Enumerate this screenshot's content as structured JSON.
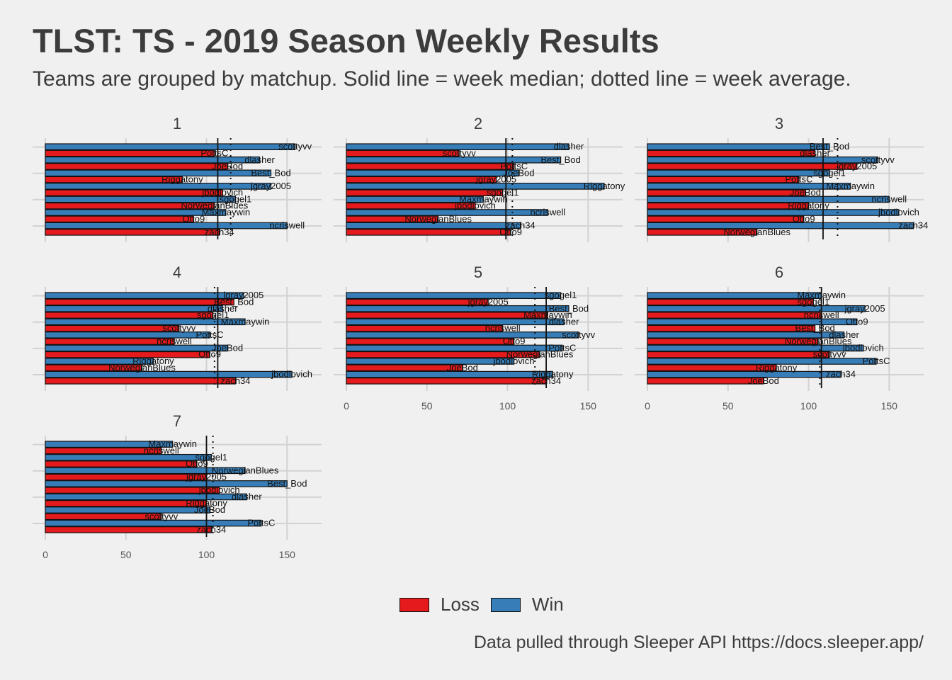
{
  "title": "TLST: TS - 2019 Season Weekly Results",
  "subtitle": "Teams are grouped by matchup. Solid line = week median; dotted line = week average.",
  "caption": "Data pulled through Sleeper API https://docs.sleeper.app/",
  "legend": [
    {
      "label": "Loss",
      "color": "#e41a1c"
    },
    {
      "label": "Win",
      "color": "#377eb8"
    }
  ],
  "chart_data": {
    "type": "bar",
    "orientation": "horizontal",
    "facet_by": "week",
    "x_ticks": [
      0,
      50,
      100,
      150
    ],
    "xlim": [
      0,
      170
    ],
    "colors": {
      "Loss": "#e41a1c",
      "Win": "#377eb8"
    },
    "facets": [
      {
        "label": "1",
        "median": 107,
        "average": 115,
        "bars": [
          {
            "team": "scottyvv",
            "value": 155,
            "result": "Win"
          },
          {
            "team": "PottsC",
            "value": 105,
            "result": "Loss"
          },
          {
            "team": "dlasher",
            "value": 133,
            "result": "Win"
          },
          {
            "team": "JoeBod",
            "value": 113,
            "result": "Loss"
          },
          {
            "team": "Best_Bod",
            "value": 140,
            "result": "Win"
          },
          {
            "team": "Riggatony",
            "value": 85,
            "result": "Loss"
          },
          {
            "team": "jgray2005",
            "value": 140,
            "result": "Win"
          },
          {
            "team": "jbodlovich",
            "value": 110,
            "result": "Loss"
          },
          {
            "team": "sgogel1",
            "value": 118,
            "result": "Win"
          },
          {
            "team": "NorwegianBlues",
            "value": 105,
            "result": "Loss"
          },
          {
            "team": "Maxmaywin",
            "value": 112,
            "result": "Win"
          },
          {
            "team": "Otto9",
            "value": 92,
            "result": "Loss"
          },
          {
            "team": "ncriswell",
            "value": 150,
            "result": "Win"
          },
          {
            "team": "zach34",
            "value": 108,
            "result": "Loss"
          }
        ]
      },
      {
        "label": "2",
        "median": 99,
        "average": 103,
        "bars": [
          {
            "team": "dlasher",
            "value": 138,
            "result": "Win"
          },
          {
            "team": "scottyvv",
            "value": 70,
            "result": "Loss"
          },
          {
            "team": "Best_Bod",
            "value": 133,
            "result": "Win"
          },
          {
            "team": "PottsC",
            "value": 104,
            "result": "Loss"
          },
          {
            "team": "JoeBod",
            "value": 107,
            "result": "Win"
          },
          {
            "team": "jgray2005",
            "value": 93,
            "result": "Loss"
          },
          {
            "team": "Riggatony",
            "value": 160,
            "result": "Win"
          },
          {
            "team": "sgogel1",
            "value": 97,
            "result": "Loss"
          },
          {
            "team": "Maxmaywin",
            "value": 85,
            "result": "Win"
          },
          {
            "team": "jbodlovich",
            "value": 80,
            "result": "Loss"
          },
          {
            "team": "ncriswell",
            "value": 125,
            "result": "Win"
          },
          {
            "team": "NorwegianBlues",
            "value": 57,
            "result": "Loss"
          },
          {
            "team": "zach34",
            "value": 108,
            "result": "Win"
          },
          {
            "team": "Otto9",
            "value": 102,
            "result": "Loss"
          }
        ]
      },
      {
        "label": "3",
        "median": 109,
        "average": 118,
        "bars": [
          {
            "team": "Best_Bod",
            "value": 113,
            "result": "Win"
          },
          {
            "team": "dlasher",
            "value": 104,
            "result": "Loss"
          },
          {
            "team": "scottyvv",
            "value": 143,
            "result": "Win"
          },
          {
            "team": "jgray2005",
            "value": 130,
            "result": "Loss"
          },
          {
            "team": "sgogel1",
            "value": 113,
            "result": "Win"
          },
          {
            "team": "PottsC",
            "value": 94,
            "result": "Loss"
          },
          {
            "team": "Maxmaywin",
            "value": 126,
            "result": "Win"
          },
          {
            "team": "JoeBod",
            "value": 98,
            "result": "Loss"
          },
          {
            "team": "ncriswell",
            "value": 150,
            "result": "Win"
          },
          {
            "team": "Riggatony",
            "value": 100,
            "result": "Loss"
          },
          {
            "team": "jbodlovich",
            "value": 156,
            "result": "Win"
          },
          {
            "team": "Otto9",
            "value": 97,
            "result": "Loss"
          },
          {
            "team": "zach34",
            "value": 165,
            "result": "Win"
          },
          {
            "team": "NorwegianBlues",
            "value": 68,
            "result": "Loss"
          }
        ]
      },
      {
        "label": "4",
        "median": 107,
        "average": 105,
        "bars": [
          {
            "team": "jgray2005",
            "value": 123,
            "result": "Win"
          },
          {
            "team": "Best_Bod",
            "value": 117,
            "result": "Loss"
          },
          {
            "team": "dlasher",
            "value": 110,
            "result": "Win"
          },
          {
            "team": "sgogel1",
            "value": 104,
            "result": "Loss"
          },
          {
            "team": "Maxmaywin",
            "value": 124,
            "result": "Win"
          },
          {
            "team": "scottyvv",
            "value": 83,
            "result": "Loss"
          },
          {
            "team": "PottsC",
            "value": 102,
            "result": "Win"
          },
          {
            "team": "ncriswell",
            "value": 80,
            "result": "Loss"
          },
          {
            "team": "JoeBod",
            "value": 113,
            "result": "Win"
          },
          {
            "team": "Otto9",
            "value": 102,
            "result": "Loss"
          },
          {
            "team": "Riggatony",
            "value": 67,
            "result": "Win"
          },
          {
            "team": "NorwegianBlues",
            "value": 60,
            "result": "Loss"
          },
          {
            "team": "jbodlovich",
            "value": 153,
            "result": "Win"
          },
          {
            "team": "zach34",
            "value": 118,
            "result": "Loss"
          }
        ]
      },
      {
        "label": "5",
        "median": 124,
        "average": 117,
        "bars": [
          {
            "team": "sgogel1",
            "value": 133,
            "result": "Win"
          },
          {
            "team": "jgray2005",
            "value": 88,
            "result": "Loss"
          },
          {
            "team": "Best_Bod",
            "value": 138,
            "result": "Win"
          },
          {
            "team": "Maxmaywin",
            "value": 125,
            "result": "Loss"
          },
          {
            "team": "dlasher",
            "value": 135,
            "result": "Win"
          },
          {
            "team": "ncriswell",
            "value": 97,
            "result": "Loss"
          },
          {
            "team": "scottyvv",
            "value": 144,
            "result": "Win"
          },
          {
            "team": "Otto9",
            "value": 104,
            "result": "Loss"
          },
          {
            "team": "PottsC",
            "value": 134,
            "result": "Win"
          },
          {
            "team": "NorwegianBlues",
            "value": 120,
            "result": "Loss"
          },
          {
            "team": "jbodlovich",
            "value": 104,
            "result": "Win"
          },
          {
            "team": "JoeBod",
            "value": 72,
            "result": "Loss"
          },
          {
            "team": "Riggatony",
            "value": 128,
            "result": "Win"
          },
          {
            "team": "zach34",
            "value": 124,
            "result": "Loss"
          }
        ]
      },
      {
        "label": "6",
        "median": 108,
        "average": 107,
        "bars": [
          {
            "team": "Maxmaywin",
            "value": 108,
            "result": "Win"
          },
          {
            "team": "sgogel1",
            "value": 103,
            "result": "Loss"
          },
          {
            "team": "jgray2005",
            "value": 135,
            "result": "Win"
          },
          {
            "team": "ncriswell",
            "value": 108,
            "result": "Loss"
          },
          {
            "team": "Otto9",
            "value": 130,
            "result": "Win"
          },
          {
            "team": "Best_Bod",
            "value": 104,
            "result": "Loss"
          },
          {
            "team": "dlasher",
            "value": 122,
            "result": "Win"
          },
          {
            "team": "NorwegianBlues",
            "value": 106,
            "result": "Loss"
          },
          {
            "team": "jbodlovich",
            "value": 134,
            "result": "Win"
          },
          {
            "team": "scottyvv",
            "value": 113,
            "result": "Loss"
          },
          {
            "team": "PottsC",
            "value": 142,
            "result": "Win"
          },
          {
            "team": "Riggatony",
            "value": 80,
            "result": "Loss"
          },
          {
            "team": "zach34",
            "value": 120,
            "result": "Win"
          },
          {
            "team": "JoeBod",
            "value": 72,
            "result": "Loss"
          }
        ]
      },
      {
        "label": "7",
        "median": 100,
        "average": 104,
        "bars": [
          {
            "team": "Maxmaywin",
            "value": 79,
            "result": "Win"
          },
          {
            "team": "ncriswell",
            "value": 72,
            "result": "Loss"
          },
          {
            "team": "sgogel1",
            "value": 103,
            "result": "Win"
          },
          {
            "team": "Otto9",
            "value": 94,
            "result": "Loss"
          },
          {
            "team": "NorwegianBlues",
            "value": 124,
            "result": "Win"
          },
          {
            "team": "jgray2005",
            "value": 100,
            "result": "Loss"
          },
          {
            "team": "Best_Bod",
            "value": 150,
            "result": "Win"
          },
          {
            "team": "jbodlovich",
            "value": 108,
            "result": "Loss"
          },
          {
            "team": "dlasher",
            "value": 125,
            "result": "Win"
          },
          {
            "team": "Riggatony",
            "value": 100,
            "result": "Loss"
          },
          {
            "team": "JoeBod",
            "value": 102,
            "result": "Win"
          },
          {
            "team": "scottyvv",
            "value": 72,
            "result": "Loss"
          },
          {
            "team": "PottsC",
            "value": 134,
            "result": "Win"
          },
          {
            "team": "zach34",
            "value": 103,
            "result": "Loss"
          }
        ]
      }
    ]
  }
}
